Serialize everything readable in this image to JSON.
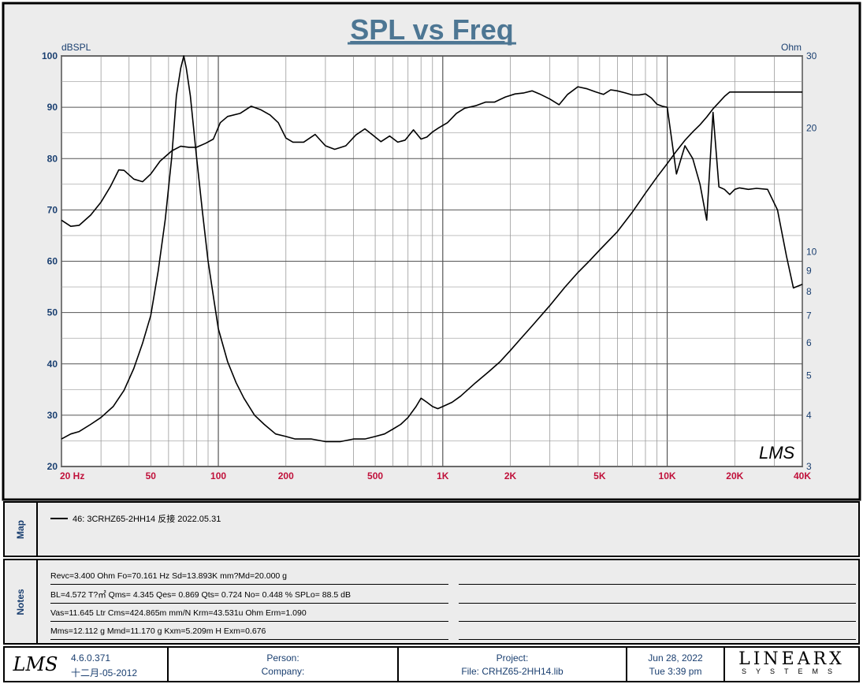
{
  "header": {
    "title": "SPL vs Freq"
  },
  "chart_data": {
    "type": "line",
    "title": "SPL vs Freq",
    "left_axis_label": "dBSPL",
    "right_axis_label": "Ohm",
    "x_scale": "log",
    "xlim": [
      20,
      40000
    ],
    "ylim": [
      20,
      100
    ],
    "y2lim": [
      3,
      30
    ],
    "y2_scale": "log",
    "grid": true,
    "x_tick_labels": [
      "20  Hz",
      "50",
      "100",
      "200",
      "500",
      "1K",
      "2K",
      "5K",
      "10K",
      "20K",
      "40K"
    ],
    "x_tick_values": [
      20,
      50,
      100,
      200,
      500,
      1000,
      2000,
      5000,
      10000,
      20000,
      40000
    ],
    "y_tick_values": [
      100,
      90,
      80,
      70,
      60,
      50,
      40,
      30,
      20
    ],
    "y_tick_labels": [
      "100",
      "90",
      "80",
      "70",
      "60",
      "50",
      "40",
      "30",
      "20"
    ],
    "y2_tick_values": [
      30,
      20,
      10,
      9,
      8,
      7,
      6,
      5,
      4,
      3
    ],
    "y2_tick_labels": [
      "30",
      "20",
      "10",
      "9",
      "8",
      "7",
      "6",
      "5",
      "4",
      "3"
    ],
    "watermark": "LMS",
    "series": [
      {
        "axis": "left",
        "unit": "dBSPL",
        "x": [
          20,
          22,
          24,
          27,
          30,
          33,
          36,
          38,
          42,
          46,
          50,
          55,
          62,
          68,
          74,
          80,
          88,
          95,
          102,
          110,
          125,
          140,
          155,
          170,
          185,
          200,
          215,
          240,
          270,
          300,
          330,
          370,
          410,
          450,
          490,
          530,
          580,
          630,
          680,
          740,
          800,
          850,
          900,
          960,
          1050,
          1150,
          1250,
          1400,
          1550,
          1700,
          1900,
          2100,
          2300,
          2500,
          2700,
          3000,
          3300,
          3600,
          4000,
          4400,
          4800,
          5200,
          5600,
          6000,
          6500,
          7000,
          7500,
          8000,
          8500,
          9000,
          9500,
          10000,
          11000,
          12000,
          13000,
          14000,
          15000,
          16000,
          17000,
          18000,
          19000,
          20000,
          21000,
          23000,
          25000,
          28000,
          31000,
          34000,
          36500,
          40000
        ],
        "y": [
          68,
          66.8,
          67,
          69,
          71.5,
          74.5,
          77.8,
          77.7,
          76,
          75.5,
          77,
          79.5,
          81.5,
          82.4,
          82.2,
          82.2,
          83,
          83.8,
          87,
          88.2,
          88.8,
          90.2,
          89.5,
          88.5,
          87,
          84,
          83.2,
          83.2,
          84.7,
          82.5,
          81.8,
          82.5,
          84.6,
          85.8,
          84.5,
          83.3,
          84.4,
          83.2,
          83.6,
          85.6,
          83.8,
          84.2,
          85.2,
          86,
          87,
          88.8,
          89.8,
          90.3,
          91,
          91,
          92,
          92.6,
          92.8,
          93.2,
          92.6,
          91.6,
          90.5,
          92.5,
          94,
          93.6,
          93,
          92.5,
          93.4,
          93.2,
          92.8,
          92.4,
          92.4,
          92.6,
          91.8,
          90.6,
          90.2,
          90,
          77,
          82.5,
          80,
          75,
          68,
          89,
          74.5,
          74,
          73,
          74,
          74.3,
          74,
          74.2,
          74,
          70,
          61,
          54.8,
          55.5
        ]
      },
      {
        "axis": "right",
        "unit": "Ohm",
        "x": [
          20,
          22,
          24,
          27,
          30,
          34,
          38,
          42,
          46,
          50,
          54,
          58,
          62,
          65,
          68,
          70.16,
          72,
          75,
          80,
          85,
          90,
          95,
          100,
          110,
          120,
          130,
          145,
          160,
          180,
          200,
          220,
          260,
          300,
          350,
          400,
          450,
          500,
          550,
          600,
          650,
          700,
          760,
          800,
          850,
          900,
          950,
          1000,
          1100,
          1200,
          1400,
          1600,
          1800,
          2000,
          2200,
          2500,
          3000,
          3500,
          4000,
          4500,
          5000,
          6000,
          7000,
          8000,
          9000,
          10000,
          11000,
          12000,
          13000,
          14000,
          15000,
          16000,
          17000,
          18000,
          19000,
          20000,
          25000,
          30000,
          35000,
          40000
        ],
        "y": [
          3.5,
          3.6,
          3.65,
          3.8,
          3.95,
          4.2,
          4.6,
          5.2,
          6,
          7,
          9,
          12,
          17,
          24,
          28,
          30,
          28,
          24,
          17,
          12.5,
          9.5,
          7.8,
          6.5,
          5.4,
          4.8,
          4.4,
          4,
          3.8,
          3.6,
          3.55,
          3.5,
          3.5,
          3.45,
          3.45,
          3.5,
          3.5,
          3.55,
          3.6,
          3.7,
          3.8,
          3.95,
          4.2,
          4.4,
          4.3,
          4.2,
          4.15,
          4.2,
          4.3,
          4.45,
          4.8,
          5.1,
          5.4,
          5.75,
          6.1,
          6.6,
          7.4,
          8.2,
          8.9,
          9.5,
          10.1,
          11.2,
          12.5,
          13.9,
          15.2,
          16.4,
          17.6,
          18.7,
          19.6,
          20.4,
          21.3,
          22.3,
          23.1,
          23.9,
          24.5,
          24.5,
          24.5,
          24.5,
          24.5,
          24.5
        ]
      }
    ]
  },
  "map": {
    "label": "Map",
    "entries": [
      {
        "text": "46: 3CRHZ65-2HH14 反接 2022.05.31"
      }
    ]
  },
  "notes": {
    "label": "Notes",
    "lines": [
      "Revc=3.400 Ohm  Fo=70.161 Hz  Sd=13.893K mm?Md=20.000 g",
      "BL=4.572 T?㎡  Qms= 4.345  Qes= 0.869  Qts= 0.724  No= 0.448 %  SPLo= 88.5 dB",
      "Vas=11.645 Ltr  Cms=424.865m mm/N  Krm=43.531u Ohm  Erm=1.090",
      "Mms=12.112 g  Mmd=11.170 g  Kxm=5.209m H  Exm=0.676"
    ]
  },
  "footer": {
    "logo": "LMS",
    "version": "4.6.0.371",
    "version_date": "十二月-05-2012",
    "person_label": "Person:",
    "company_label": "Company:",
    "project_label": "Project:",
    "file_text": "File: CRHZ65-2HH14.lib",
    "date": "Jun 28, 2022",
    "time": "Tue  3:39 pm",
    "brand_main": "LINEARX",
    "brand_sub": "SYSTEMS"
  }
}
